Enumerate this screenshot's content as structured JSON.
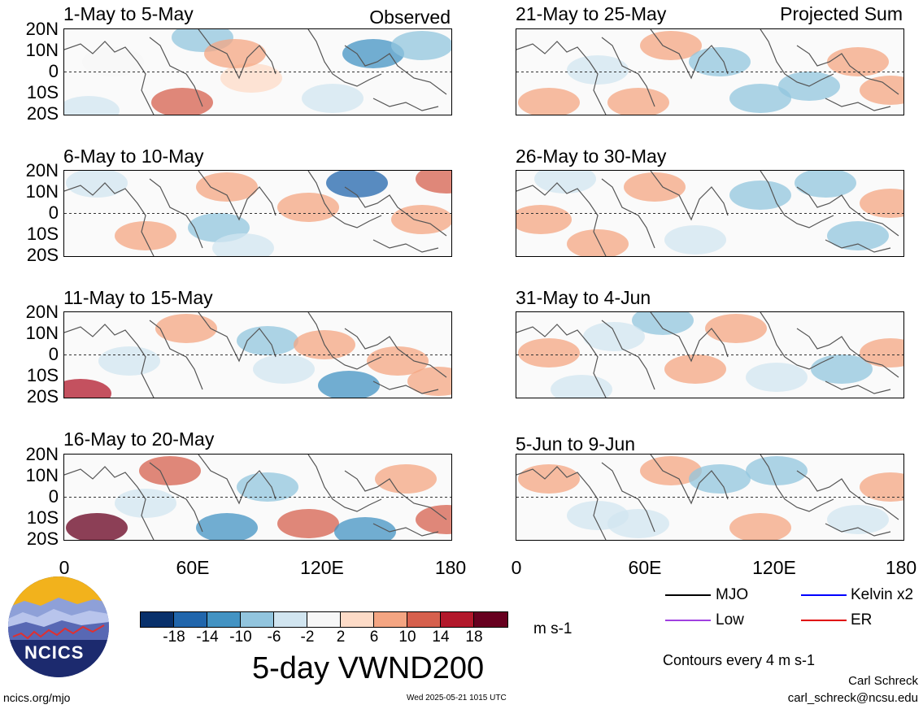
{
  "panels": [
    {
      "title": "1-May to 5-May",
      "tag": "Observed"
    },
    {
      "title": "6-May to 10-May",
      "tag": ""
    },
    {
      "title": "11-May to 15-May",
      "tag": ""
    },
    {
      "title": "16-May to 20-May",
      "tag": ""
    },
    {
      "title": "21-May to 25-May",
      "tag": "Projected Sum"
    },
    {
      "title": "26-May to 30-May",
      "tag": ""
    },
    {
      "title": "31-May to 4-Jun",
      "tag": ""
    },
    {
      "title": "5-Jun to 9-Jun",
      "tag": ""
    }
  ],
  "lat_labels": [
    "20N",
    "10N",
    "0",
    "10S",
    "20S"
  ],
  "lon_labels": [
    "0",
    "60E",
    "120E",
    "180"
  ],
  "colorbar": {
    "colors": [
      "#08306b",
      "#2166ac",
      "#4393c3",
      "#92c5de",
      "#d1e5f0",
      "#f7f7f7",
      "#fddbc7",
      "#f4a582",
      "#d6604d",
      "#b2182b",
      "#67001f"
    ],
    "ticks": [
      "-18",
      "-14",
      "-10",
      "-6",
      "-2",
      "2",
      "6",
      "10",
      "14",
      "18"
    ],
    "units": "m s-1"
  },
  "title": "5-day VWND200",
  "legend": [
    {
      "label": "MJO",
      "color": "#000000"
    },
    {
      "label": "Kelvin x2",
      "color": "#0000ff"
    },
    {
      "label": "Low",
      "color": "#a040e0"
    },
    {
      "label": "ER",
      "color": "#e00000"
    }
  ],
  "contours_note": "Contours every 4 m s-1",
  "credit_name": "Carl Schreck",
  "credit_email": "carl_schreck@ncsu.edu",
  "footer_url": "ncics.org/mjo",
  "timestamp": "Wed 2025-05-21 1015 UTC",
  "logo_text": "NCICS"
}
